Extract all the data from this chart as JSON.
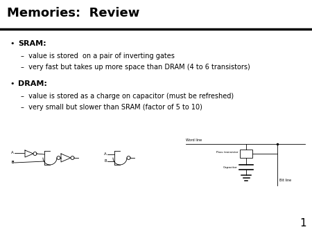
{
  "title": "Memories:  Review",
  "title_fontsize": 13,
  "title_fontweight": "bold",
  "bg_color": "#ffffff",
  "text_color": "#000000",
  "bullet1_label": "SRAM:",
  "bullet1_sub1": "value is stored  on a pair of inverting gates",
  "bullet1_sub2": "very fast but takes up more space than DRAM (4 to 6 transistors)",
  "bullet2_label": "DRAM:",
  "bullet2_sub1": "value is stored as a charge on capacitor (must be refreshed)",
  "bullet2_sub2": "very small but slower than SRAM (factor of 5 to 10)",
  "slide_number": "1",
  "hline_color": "#000000",
  "hline_linewidth": 2.5,
  "bullet_fs": 8,
  "sub_fs": 7,
  "label_A": "A",
  "label_B": "B",
  "wl_label": "Word line",
  "pt_label": "Pass transistor",
  "cap_label": "Capacitor",
  "bl_label": "Bit line"
}
